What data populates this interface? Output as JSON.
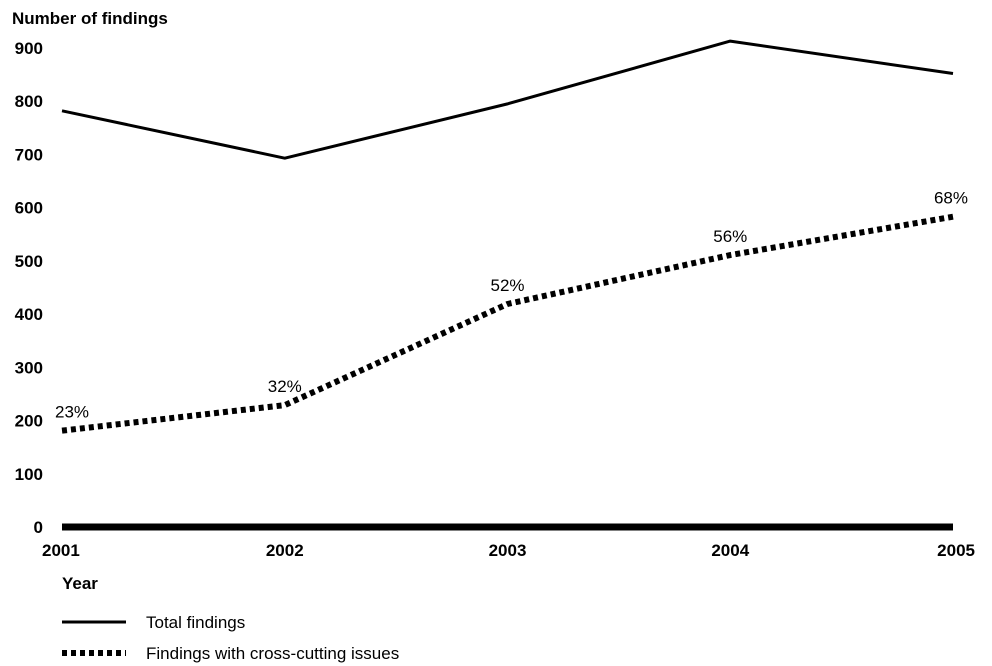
{
  "chart_data": {
    "type": "line",
    "ylabel": "Number of findings",
    "xlabel": "Year",
    "categories": [
      "2001",
      "2002",
      "2003",
      "2004",
      "2005"
    ],
    "ylim": [
      0,
      900
    ],
    "yticks": [
      0,
      100,
      200,
      300,
      400,
      500,
      600,
      700,
      800,
      900
    ],
    "grid": false,
    "legend_position": "bottom-left",
    "series": [
      {
        "name": "Total findings",
        "style": "solid",
        "values": [
          782,
          693,
          795,
          913,
          852
        ]
      },
      {
        "name": "Findings with cross-cutting issues",
        "style": "dotted",
        "values": [
          181,
          229,
          419,
          511,
          583
        ],
        "data_labels": [
          "23%",
          "32%",
          "52%",
          "56%",
          "68%"
        ]
      }
    ]
  }
}
